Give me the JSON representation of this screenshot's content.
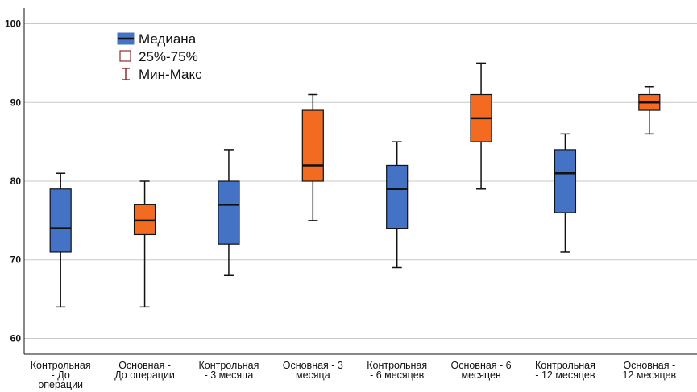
{
  "chart_data": {
    "type": "boxplot",
    "ylim": [
      58,
      102
    ],
    "yticks": [
      60,
      70,
      80,
      90,
      100
    ],
    "grid": true,
    "legend_placement": "top-left",
    "legend": [
      {
        "key": "median",
        "label": "Медиана"
      },
      {
        "key": "iqr",
        "label": "25%-75%"
      },
      {
        "key": "range",
        "label": "Мин-Макс"
      }
    ],
    "categories": [
      {
        "lines": [
          "Контрольная",
          "- До",
          "операции"
        ],
        "group": "control"
      },
      {
        "lines": [
          "Основная -",
          "До операции"
        ],
        "group": "main"
      },
      {
        "lines": [
          "Контрольная",
          "- 3 месяца"
        ],
        "group": "control"
      },
      {
        "lines": [
          "Основная - 3",
          "месяца"
        ],
        "group": "main"
      },
      {
        "lines": [
          "Контрольная",
          "- 6 месяцев"
        ],
        "group": "control"
      },
      {
        "lines": [
          "Основная - 6",
          "месяцев"
        ],
        "group": "main"
      },
      {
        "lines": [
          "Контрольная",
          "- 12 месяцев"
        ],
        "group": "control"
      },
      {
        "lines": [
          "Основная -",
          "12 месяцев"
        ],
        "group": "main"
      }
    ],
    "boxes": [
      {
        "min": 64,
        "q1": 71,
        "median": 74,
        "q3": 79,
        "max": 81
      },
      {
        "min": 64,
        "q1": 73.2,
        "median": 75,
        "q3": 77,
        "max": 80
      },
      {
        "min": 68,
        "q1": 72,
        "median": 77,
        "q3": 80,
        "max": 84
      },
      {
        "min": 75,
        "q1": 80,
        "median": 82,
        "q3": 89,
        "max": 91
      },
      {
        "min": 69,
        "q1": 74,
        "median": 79,
        "q3": 82,
        "max": 85
      },
      {
        "min": 79,
        "q1": 85,
        "median": 88,
        "q3": 91,
        "max": 95
      },
      {
        "min": 71,
        "q1": 76,
        "median": 81,
        "q3": 84,
        "max": 86
      },
      {
        "min": 86,
        "q1": 89,
        "median": 90,
        "q3": 91,
        "max": 92
      }
    ],
    "colors": {
      "control": "#4472c4",
      "main": "#f26b21",
      "whisker": "#111111",
      "grid": "#c8c8c8",
      "legend_box": "#4472c4",
      "legend_minmax": "#8b2e2e",
      "axis": "#111111"
    }
  }
}
